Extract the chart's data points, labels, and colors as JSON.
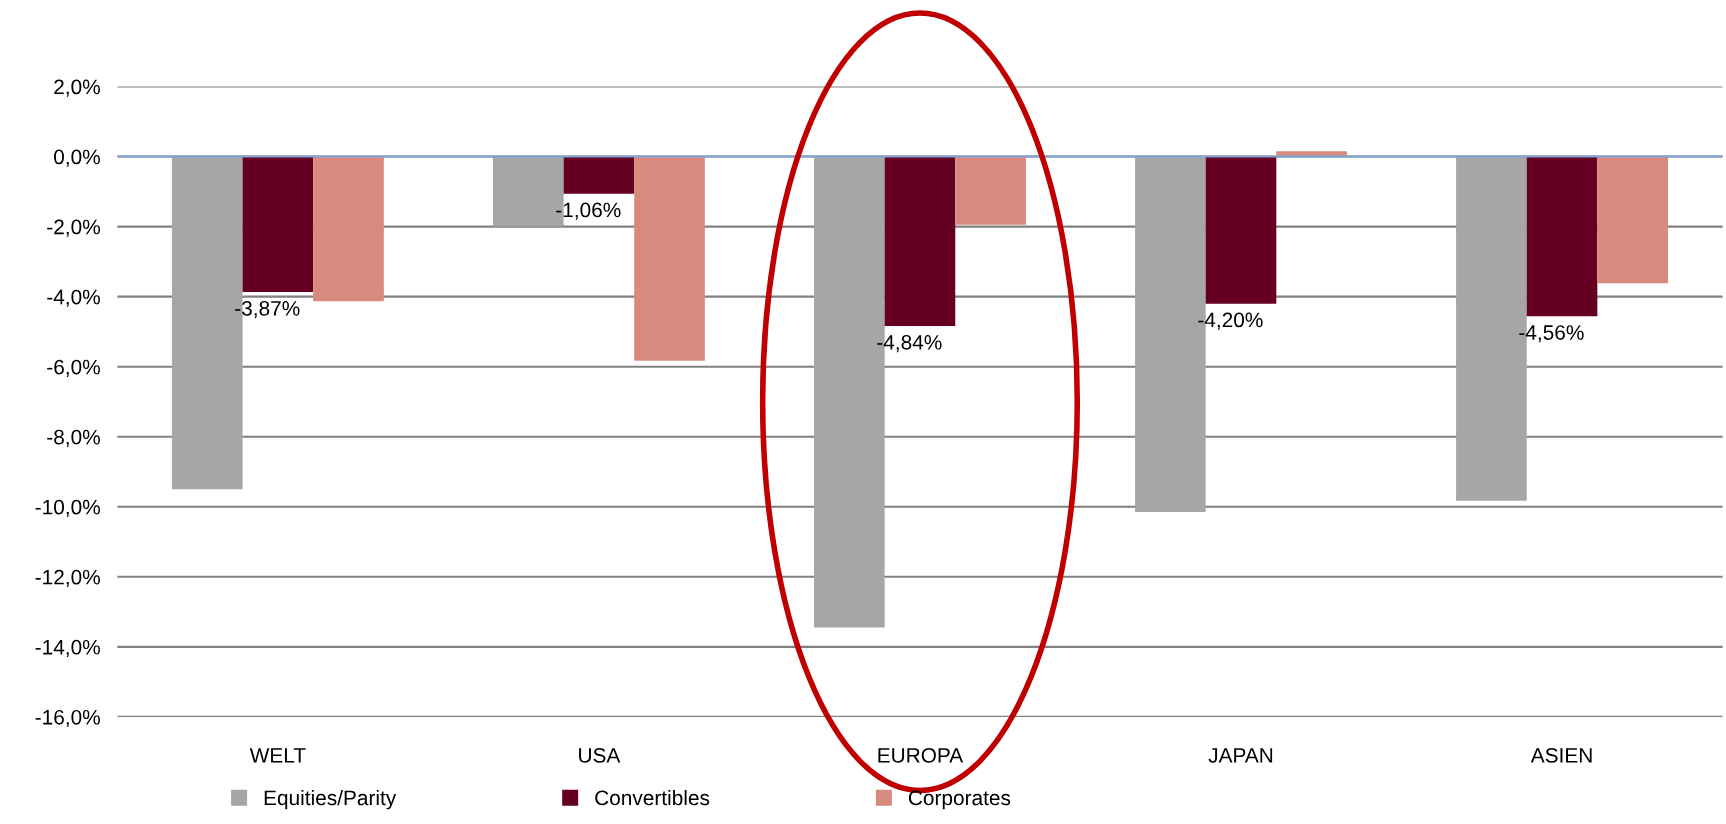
{
  "chart_data": {
    "type": "bar",
    "categories": [
      "WELT",
      "USA",
      "EUROPA",
      "JAPAN",
      "ASIEN"
    ],
    "series": [
      {
        "name": "Equities/Parity",
        "color": "#a6a6a6",
        "values": [
          -9.5,
          -2.0,
          -13.45,
          -10.15,
          -9.83
        ]
      },
      {
        "name": "Convertibles",
        "color": "#660022",
        "values": [
          -3.87,
          -1.06,
          -4.84,
          -4.2,
          -4.56
        ],
        "value_labels": [
          "-3,87%",
          "-1,06%",
          "-4,84%",
          "-4,20%",
          "-4,56%"
        ]
      },
      {
        "name": "Corporates",
        "color": "#d98a7e",
        "values": [
          -4.13,
          -5.83,
          -1.95,
          0.15,
          -3.62
        ]
      }
    ],
    "ylim": [
      -16,
      2
    ],
    "yticks": [
      {
        "value": -16,
        "label": "-16,0%"
      },
      {
        "value": -14,
        "label": "-14,0%"
      },
      {
        "value": -12,
        "label": "-12,0%"
      },
      {
        "value": -10,
        "label": "-10,0%"
      },
      {
        "value": -8,
        "label": "-8,0%"
      },
      {
        "value": -6,
        "label": "-6,0%"
      },
      {
        "value": -4,
        "label": "-4,0%"
      },
      {
        "value": -2,
        "label": "-2,0%"
      },
      {
        "value": 0,
        "label": "0,0%"
      },
      {
        "value": 2,
        "label": "2,0%"
      }
    ],
    "ref_lines": [
      {
        "axis": "y",
        "value": 0,
        "color": "#7fa3d6"
      }
    ],
    "grid": "y",
    "legend": "bottom"
  }
}
